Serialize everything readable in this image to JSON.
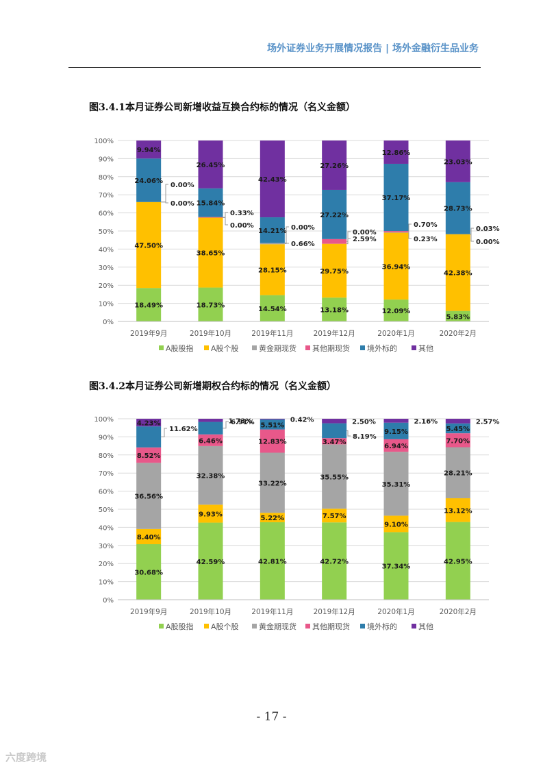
{
  "header": {
    "title": "场外证券业务开展情况报告 | 场外金融衍生品业务"
  },
  "page_number": "- 17 -",
  "watermark": "六度跨境",
  "colors": {
    "A股股指": "#92d050",
    "A股个股": "#ffc000",
    "黄金期现货": "#a5a5a5",
    "其他期现货": "#e8588a",
    "境外标的": "#2e7dab",
    "其他": "#7030a0",
    "header": "#5a93c8"
  },
  "chart_data": [
    {
      "type": "bar",
      "stacked": true,
      "title": "图3.4.1本月证券公司新增收益互换合约标的情况（名义金额）",
      "categories": [
        "2019年9月",
        "2019年10月",
        "2019年11月",
        "2019年12月",
        "2020年1月",
        "2020年2月"
      ],
      "ylim": [
        0,
        100
      ],
      "y_ticks": [
        "0%",
        "10%",
        "20%",
        "30%",
        "40%",
        "50%",
        "60%",
        "70%",
        "80%",
        "90%",
        "100%"
      ],
      "legend_position": "bottom",
      "series": [
        {
          "name": "A股股指",
          "values": [
            18.49,
            18.73,
            14.54,
            13.18,
            12.09,
            5.83
          ],
          "labels": [
            "18.49%",
            "18.73%",
            "14.54%",
            "13.18%",
            "12.09%",
            "5.83%"
          ]
        },
        {
          "name": "A股个股",
          "values": [
            47.5,
            38.65,
            28.15,
            29.75,
            36.94,
            42.38
          ],
          "labels": [
            "47.50%",
            "38.65%",
            "28.15%",
            "29.75%",
            "36.94%",
            "42.38%"
          ]
        },
        {
          "name": "黄金期现货",
          "values": [
            0.0,
            0.0,
            0.66,
            0.0,
            0.23,
            0.0
          ],
          "labels": [
            "0.00%",
            "0.00%",
            "0.66%",
            "0.00%",
            "0.23%",
            "0.00%"
          ]
        },
        {
          "name": "其他期现货",
          "values": [
            0.0,
            0.33,
            0.0,
            2.59,
            0.7,
            0.03
          ],
          "labels": [
            "0.00%",
            "0.33%",
            "0.00%",
            "2.59%",
            "0.70%",
            "0.03%"
          ]
        },
        {
          "name": "境外标的",
          "values": [
            24.06,
            15.84,
            14.21,
            27.22,
            37.17,
            28.73
          ],
          "labels": [
            "24.06%",
            "15.84%",
            "14.21%",
            "27.22%",
            "37.17%",
            "28.73%"
          ]
        },
        {
          "name": "其他",
          "values": [
            9.94,
            26.45,
            42.43,
            27.26,
            12.86,
            23.03
          ],
          "labels": [
            "9.94%",
            "26.45%",
            "42.43%",
            "27.26%",
            "12.86%",
            "23.03%"
          ]
        }
      ]
    },
    {
      "type": "bar",
      "stacked": true,
      "title": "图3.4.2本月证券公司新增期权合约标的情况（名义金额）",
      "categories": [
        "2019年9月",
        "2019年10月",
        "2019年11月",
        "2019年12月",
        "2020年1月",
        "2020年2月"
      ],
      "ylim": [
        0,
        100
      ],
      "y_ticks": [
        "0%",
        "10%",
        "20%",
        "30%",
        "40%",
        "50%",
        "60%",
        "70%",
        "80%",
        "90%",
        "100%"
      ],
      "legend_position": "bottom",
      "series": [
        {
          "name": "A股股指",
          "values": [
            30.68,
            42.59,
            42.81,
            42.72,
            37.34,
            42.95
          ],
          "labels": [
            "30.68%",
            "42.59%",
            "42.81%",
            "42.72%",
            "37.34%",
            "42.95%"
          ]
        },
        {
          "name": "A股个股",
          "values": [
            8.4,
            9.93,
            5.22,
            7.57,
            9.1,
            13.12
          ],
          "labels": [
            "8.40%",
            "9.93%",
            "5.22%",
            "7.57%",
            "9.10%",
            "13.12%"
          ]
        },
        {
          "name": "黄金期现货",
          "values": [
            36.56,
            32.38,
            33.22,
            35.55,
            35.31,
            28.21
          ],
          "labels": [
            "36.56%",
            "32.38%",
            "33.22%",
            "35.55%",
            "35.31%",
            "28.21%"
          ]
        },
        {
          "name": "其他期现货",
          "values": [
            8.52,
            6.46,
            12.83,
            3.47,
            6.94,
            7.7
          ],
          "labels": [
            "8.52%",
            "6.46%",
            "12.83%",
            "3.47%",
            "6.94%",
            "7.70%"
          ]
        },
        {
          "name": "境外标的",
          "values": [
            11.62,
            6.91,
            5.51,
            8.19,
            9.15,
            5.45
          ],
          "labels": [
            "11.62%",
            "6.91%",
            "5.51%",
            "8.19%",
            "9.15%",
            "5.45%"
          ]
        },
        {
          "name": "其他",
          "values": [
            4.23,
            1.73,
            0.42,
            2.5,
            2.16,
            2.57
          ],
          "labels": [
            "4.23%",
            "1.73%",
            "0.42%",
            "2.50%",
            "2.16%",
            "2.57%"
          ]
        }
      ]
    }
  ]
}
